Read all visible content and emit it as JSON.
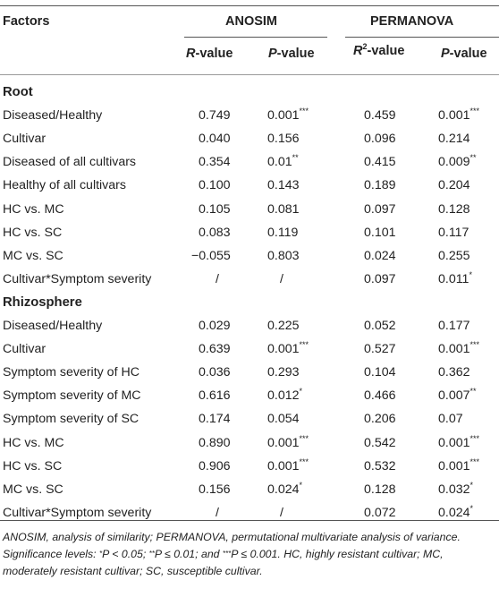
{
  "headers": {
    "factors": "Factors",
    "anosim": "ANOSIM",
    "permanova": "PERMANOVA",
    "r_value_italic": "R",
    "r_value_suffix": "-value",
    "p_value_italic": "P",
    "p_value_suffix": "-value",
    "r2_value_italic": "R",
    "r2_value_sup": "2",
    "r2_value_suffix": "-value"
  },
  "sections": [
    {
      "name": "Root",
      "rows": [
        {
          "factor": "Diseased/Healthy",
          "r": "0.749",
          "p1": "0.001",
          "p1_sig": "***",
          "r2": "0.459",
          "p2": "0.001",
          "p2_sig": "***"
        },
        {
          "factor": "Cultivar",
          "r": "0.040",
          "p1": "0.156",
          "p1_sig": "",
          "r2": "0.096",
          "p2": "0.214",
          "p2_sig": ""
        },
        {
          "factor": "Diseased of all cultivars",
          "r": "0.354",
          "p1": "0.01",
          "p1_sig": "**",
          "r2": "0.415",
          "p2": "0.009",
          "p2_sig": "**"
        },
        {
          "factor": "Healthy of all cultivars",
          "r": "0.100",
          "p1": "0.143",
          "p1_sig": "",
          "r2": "0.189",
          "p2": "0.204",
          "p2_sig": ""
        },
        {
          "factor": "HC vs. MC",
          "r": "0.105",
          "p1": "0.081",
          "p1_sig": "",
          "r2": "0.097",
          "p2": "0.128",
          "p2_sig": ""
        },
        {
          "factor": "HC vs. SC",
          "r": "0.083",
          "p1": "0.119",
          "p1_sig": "",
          "r2": "0.101",
          "p2": "0.117",
          "p2_sig": ""
        },
        {
          "factor": "MC vs. SC",
          "r": "−0.055",
          "p1": "0.803",
          "p1_sig": "",
          "r2": "0.024",
          "p2": "0.255",
          "p2_sig": ""
        },
        {
          "factor": "Cultivar*Symptom severity",
          "r": "/",
          "p1": "/",
          "p1_sig": "",
          "r2": "0.097",
          "p2": "0.011",
          "p2_sig": "*"
        }
      ]
    },
    {
      "name": "Rhizosphere",
      "rows": [
        {
          "factor": "Diseased/Healthy",
          "r": "0.029",
          "p1": "0.225",
          "p1_sig": "",
          "r2": "0.052",
          "p2": "0.177",
          "p2_sig": ""
        },
        {
          "factor": "Cultivar",
          "r": "0.639",
          "p1": "0.001",
          "p1_sig": "***",
          "r2": "0.527",
          "p2": "0.001",
          "p2_sig": "***"
        },
        {
          "factor": "Symptom severity of HC",
          "r": "0.036",
          "p1": "0.293",
          "p1_sig": "",
          "r2": "0.104",
          "p2": "0.362",
          "p2_sig": ""
        },
        {
          "factor": "Symptom severity of MC",
          "r": "0.616",
          "p1": "0.012",
          "p1_sig": "*",
          "r2": "0.466",
          "p2": "0.007",
          "p2_sig": "**"
        },
        {
          "factor": "Symptom severity of SC",
          "r": "0.174",
          "p1": "0.054",
          "p1_sig": "",
          "r2": "0.206",
          "p2": "0.07",
          "p2_sig": ""
        },
        {
          "factor": "HC vs. MC",
          "r": "0.890",
          "p1": "0.001",
          "p1_sig": "***",
          "r2": "0.542",
          "p2": "0.001",
          "p2_sig": "***"
        },
        {
          "factor": "HC vs. SC",
          "r": "0.906",
          "p1": "0.001",
          "p1_sig": "***",
          "r2": "0.532",
          "p2": "0.001",
          "p2_sig": "***"
        },
        {
          "factor": "MC vs. SC",
          "r": "0.156",
          "p1": "0.024",
          "p1_sig": "*",
          "r2": "0.128",
          "p2": "0.032",
          "p2_sig": "*"
        },
        {
          "factor": "Cultivar*Symptom severity",
          "r": "/",
          "p1": "/",
          "p1_sig": "",
          "r2": "0.072",
          "p2": "0.024",
          "p2_sig": "*"
        }
      ]
    }
  ],
  "footnote": {
    "part1": "ANOSIM, analysis of similarity; PERMANOVA, permutational multivariate analysis of variance. Significance levels: ",
    "sig1_sup": "*",
    "sig1_text": "P < 0.05; ",
    "sig2_sup": "**",
    "sig2_text": "P ≤ 0.01; and ",
    "sig3_sup": "***",
    "sig3_text": "P ≤ 0.001. HC, highly resistant cultivar; MC, moderately resistant cultivar; SC, susceptible cultivar."
  }
}
